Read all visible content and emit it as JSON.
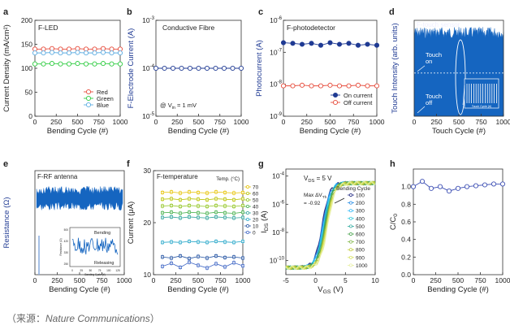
{
  "caption": {
    "open": "（来源：",
    "source": "Nature Communications",
    "close": "）"
  },
  "chart_data": [
    {
      "type": "line",
      "letter": "a",
      "title": "F-LED",
      "xlabel": "Bending Cycle (#)",
      "ylabel": "Current Density (mA/cm²)",
      "xlim": [
        0,
        1000
      ],
      "xticks": [
        0,
        250,
        500,
        750,
        1000
      ],
      "ylim": [
        0,
        200
      ],
      "yticks": [
        0,
        50,
        100,
        150,
        200
      ],
      "yscale": "linear",
      "legend": "bottom-right",
      "x": [
        0,
        100,
        200,
        300,
        400,
        500,
        600,
        700,
        800,
        900,
        1000
      ],
      "series": [
        {
          "name": "Red",
          "color": "#e74c3c",
          "marker": "circle-open",
          "values": [
            140,
            140,
            141,
            140,
            140,
            141,
            140,
            140,
            141,
            140,
            140
          ]
        },
        {
          "name": "Green",
          "color": "#2ecc40",
          "marker": "circle-open",
          "values": [
            109,
            109,
            110,
            109,
            109,
            110,
            109,
            109,
            110,
            109,
            109
          ]
        },
        {
          "name": "Blue",
          "color": "#5dade2",
          "marker": "circle-open",
          "values": [
            132,
            132,
            133,
            132,
            132,
            133,
            132,
            132,
            133,
            132,
            132
          ]
        }
      ]
    },
    {
      "type": "line",
      "letter": "b",
      "title": "Conductive Fibre",
      "xlabel": "Bending Cycle (#)",
      "ylabel": "F-Electrode Current (A)",
      "xlim": [
        0,
        1000
      ],
      "xticks": [
        0,
        250,
        500,
        750,
        1000
      ],
      "ylim": [
        -5,
        -3
      ],
      "ytick_exps": [
        -5,
        -4,
        -3
      ],
      "yscale": "log",
      "annotation": {
        "prefix": "@ V",
        "sub": "in",
        "suffix": " = 1 mV"
      },
      "x": [
        0,
        100,
        200,
        300,
        400,
        500,
        600,
        700,
        800,
        900,
        1000
      ],
      "series": [
        {
          "name": "Current",
          "color": "#1f3a93",
          "marker": "circle-open",
          "values": [
            -4,
            -4,
            -4,
            -4,
            -4,
            -4,
            -4,
            -4,
            -4,
            -4,
            -4
          ]
        }
      ]
    },
    {
      "type": "line",
      "letter": "c",
      "title": "F-photodetector",
      "xlabel": "Bending Cycle (#)",
      "ylabel": "Photocurrent (A)",
      "xlim": [
        0,
        1000
      ],
      "xticks": [
        0,
        250,
        500,
        750,
        1000
      ],
      "ylim": [
        -9,
        -6
      ],
      "ytick_exps": [
        -9,
        -8,
        -7,
        -6
      ],
      "yscale": "log",
      "legend": "bottom-right",
      "x": [
        0,
        100,
        200,
        300,
        400,
        500,
        600,
        700,
        800,
        900,
        1000
      ],
      "series": [
        {
          "name": "On current",
          "color": "#1f3a93",
          "marker": "circle-filled",
          "values": [
            -6.7,
            -6.72,
            -6.75,
            -6.72,
            -6.78,
            -6.7,
            -6.75,
            -6.72,
            -6.78,
            -6.75,
            -6.78
          ]
        },
        {
          "name": "Off current",
          "color": "#e74c3c",
          "marker": "circle-open",
          "values": [
            -8.05,
            -8.05,
            -8.03,
            -8.05,
            -8.05,
            -8.03,
            -8.05,
            -8.05,
            -8.03,
            -8.05,
            -8.05
          ]
        }
      ]
    },
    {
      "type": "area",
      "letter": "d",
      "title": "F-touch sensor",
      "xlabel": "Touch Cycle (#)",
      "ylabel": "Touch Intensity (arb. units)",
      "xlim": [
        0,
        1000
      ],
      "xticks": [
        0,
        250,
        500,
        750,
        1000
      ],
      "yticks": [],
      "annotations": [
        "Touch",
        "on",
        "Touch",
        "off"
      ],
      "inset_caption": "Touch Cycle (#)",
      "color": "#1565c0",
      "level_on": 0.93,
      "level_dash": 0.45
    },
    {
      "type": "area",
      "letter": "e",
      "title": "F-RF antenna",
      "xlabel": "Bending Cycle (#)",
      "ylabel": "Resistance (Ω)",
      "xlim": [
        0,
        1000
      ],
      "xticks": [
        0,
        250,
        500,
        750,
        1000
      ],
      "yticks": [],
      "color": "#1565c0",
      "band": [
        0.62,
        0.85
      ],
      "inset": {
        "labels": [
          "Bending",
          "Releasing"
        ],
        "xlabel": "Bending Cycle (#)",
        "xticks": [
          "0",
          "25",
          "50",
          "75",
          "100",
          "125"
        ],
        "ylabel": "Resistance (Ω)",
        "yticks": [
          "500",
          "420",
          "330",
          "250"
        ]
      }
    },
    {
      "type": "line",
      "letter": "f",
      "title": "F-temperature",
      "xlabel": "Bending Cycle (#)",
      "ylabel": "Current (μA)",
      "xlim": [
        0,
        1000
      ],
      "xticks": [
        0,
        250,
        500,
        750,
        1000
      ],
      "ylim": [
        10,
        30
      ],
      "yticks": [
        10,
        20,
        30
      ],
      "yscale": "linear",
      "legend_title": "Temp. (°C)",
      "legend": "right",
      "x": [
        100,
        200,
        300,
        400,
        500,
        600,
        700,
        800,
        900,
        1000
      ],
      "series": [
        {
          "name": "70",
          "color": "#e6c200",
          "values": [
            25.8,
            25.9,
            25.7,
            25.9,
            25.8,
            25.7,
            25.9,
            25.8,
            25.7,
            25.8
          ]
        },
        {
          "name": "60",
          "color": "#b8c200",
          "values": [
            24.5,
            24.6,
            24.4,
            24.6,
            24.5,
            24.4,
            24.6,
            24.5,
            24.4,
            24.6
          ]
        },
        {
          "name": "50",
          "color": "#8fc41c",
          "values": [
            23.2,
            23.3,
            23.1,
            23.3,
            23.2,
            23.1,
            23.3,
            23.2,
            23.1,
            23.3
          ]
        },
        {
          "name": "40",
          "color": "#45b04a",
          "values": [
            21.9,
            22.0,
            21.8,
            22.0,
            21.9,
            21.8,
            22.0,
            21.9,
            21.8,
            22.0
          ]
        },
        {
          "name": "30",
          "color": "#2aa198",
          "values": [
            21.0,
            21.1,
            20.9,
            21.1,
            21.0,
            20.9,
            21.1,
            21.0,
            20.9,
            21.0
          ]
        },
        {
          "name": "20",
          "color": "#26a7c9",
          "values": [
            16.2,
            16.3,
            16.2,
            16.4,
            16.3,
            16.2,
            16.4,
            16.3,
            16.2,
            16.4
          ]
        },
        {
          "name": "10",
          "color": "#1e4fa0",
          "values": [
            13.4,
            13.2,
            13.6,
            13.1,
            13.5,
            13.2,
            13.6,
            13.3,
            13.4,
            13.2
          ]
        },
        {
          "name": "0",
          "color": "#3b63c4",
          "values": [
            11.6,
            12.2,
            11.4,
            12.4,
            11.8,
            11.3,
            12.1,
            11.5,
            12.3,
            11.7
          ]
        }
      ]
    },
    {
      "type": "line",
      "letter": "g",
      "title": "",
      "xlabel_main": "V",
      "xlabel_sub": "GS",
      "xlabel_unit": " (V)",
      "ylabel_main": "I",
      "ylabel_sub": "DS",
      "ylabel_unit": " (A)",
      "xlim": [
        -5,
        10
      ],
      "xticks": [
        -5,
        0,
        5,
        10
      ],
      "ylim": [
        -11,
        -3.5
      ],
      "ytick_exps": [
        -10,
        -8,
        -6,
        -4
      ],
      "yscale": "log",
      "annotations": {
        "vds_main": "V",
        "vds_sub": "DS",
        "vds_val": " = 5 V",
        "max_prefix": "Max ΔV",
        "max_sub": "Th",
        "max_val": "= -0.92"
      },
      "legend_title": "Bending Cycle",
      "series_names": [
        "100",
        "200",
        "300",
        "400",
        "500",
        "600",
        "700",
        "800",
        "900",
        "1000"
      ],
      "series_colors": [
        "#1a237e",
        "#1e88e5",
        "#29b6f6",
        "#26c6da",
        "#26a69a",
        "#43a047",
        "#7cb342",
        "#c0ca33",
        "#d4e157",
        "#e6ee9c"
      ],
      "vth_range": [
        1.1,
        2.02
      ]
    },
    {
      "type": "line",
      "letter": "h",
      "title": "",
      "xlabel": "Bending Cycle (#)",
      "ylabel_main": "C/C",
      "ylabel_sub": "0",
      "xlim": [
        0,
        1000
      ],
      "xticks": [
        0,
        250,
        500,
        750,
        1000
      ],
      "ylim": [
        0,
        1.2
      ],
      "yticks": [
        0.0,
        0.2,
        0.4,
        0.6,
        0.8,
        1.0
      ],
      "yscale": "linear",
      "x": [
        0,
        100,
        200,
        300,
        400,
        500,
        600,
        700,
        800,
        900,
        1000
      ],
      "series": [
        {
          "name": "C/C0",
          "color": "#3f51b5",
          "marker": "circle-open",
          "values": [
            1.0,
            1.06,
            0.98,
            1.0,
            0.95,
            0.98,
            1.0,
            1.01,
            1.02,
            1.03,
            1.03
          ]
        }
      ]
    }
  ]
}
